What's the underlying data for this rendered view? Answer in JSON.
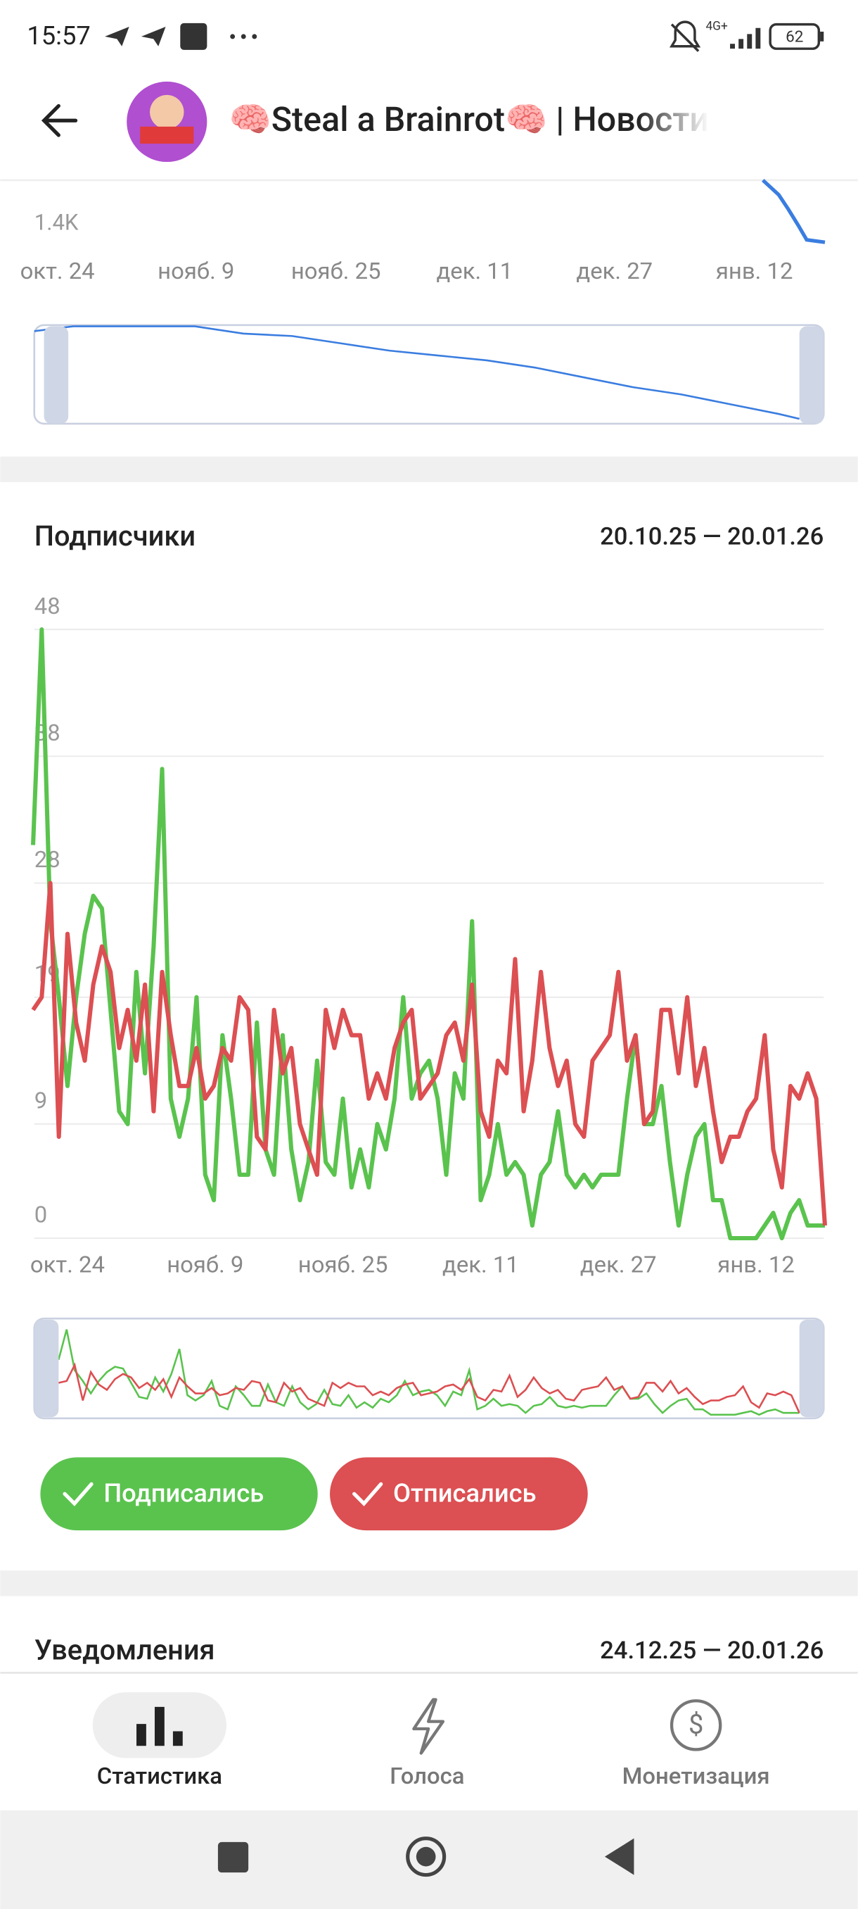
{
  "status_bar": {
    "time": "15:57",
    "network": "4G+",
    "battery": "62"
  },
  "header": {
    "title": "🧠Steal a Brainrot🧠 | Новости"
  },
  "top_chart": {
    "ytick_label": "1.4K",
    "x_labels": [
      "окт. 24",
      "нояб. 9",
      "нояб. 25",
      "дек. 11",
      "дек. 27",
      "янв. 12"
    ]
  },
  "chart_data": {
    "type": "line",
    "title": "Подписчики",
    "subtitle": "20.10.25 — 20.01.26",
    "categories": [
      null,
      null,
      null,
      null,
      "окт. 24",
      null,
      null,
      null,
      null,
      null,
      null,
      null,
      null,
      null,
      null,
      null,
      null,
      null,
      null,
      null,
      "нояб. 9",
      null,
      null,
      null,
      null,
      null,
      null,
      null,
      null,
      null,
      null,
      null,
      null,
      null,
      null,
      null,
      "нояб. 25",
      null,
      null,
      null,
      null,
      null,
      null,
      null,
      null,
      null,
      null,
      null,
      null,
      null,
      null,
      null,
      "дек. 11",
      null,
      null,
      null,
      null,
      null,
      null,
      null,
      null,
      null,
      null,
      null,
      null,
      null,
      null,
      null,
      "дек. 27",
      null,
      null,
      null,
      null,
      null,
      null,
      null,
      null,
      null,
      null,
      null,
      null,
      null,
      null,
      null,
      "янв. 12",
      null,
      null,
      null,
      null,
      null,
      null,
      null,
      null
    ],
    "ylim": [
      0,
      48
    ],
    "yticks": [
      0,
      9,
      19,
      28,
      38,
      48
    ],
    "grid": true,
    "series": [
      {
        "name": "Подписались",
        "color": "#5ac34e",
        "values": [
          31,
          48,
          25,
          19,
          12,
          19,
          24,
          27,
          26,
          18,
          10,
          9,
          21,
          13,
          23,
          37,
          11,
          8,
          11,
          19,
          5,
          3,
          16,
          11,
          5,
          5,
          17,
          7,
          5,
          16,
          7,
          3,
          6,
          14,
          6,
          5,
          11,
          4,
          7,
          4,
          9,
          7,
          11,
          19,
          11,
          13,
          14,
          11,
          5,
          13,
          11,
          25,
          3,
          5,
          9,
          5,
          6,
          5,
          1,
          5,
          6,
          10,
          5,
          4,
          5,
          4,
          5,
          5,
          5,
          11,
          16,
          9,
          9,
          12,
          6,
          1,
          5,
          8,
          9,
          3,
          3,
          0,
          0,
          0,
          0,
          1,
          2,
          0,
          2,
          3,
          1,
          1,
          1
        ]
      },
      {
        "name": "Отписались",
        "color": "#dc4f52",
        "values": [
          18,
          19,
          28,
          8,
          24,
          17,
          14,
          20,
          23,
          21,
          15,
          18,
          14,
          20,
          10,
          21,
          16,
          12,
          12,
          15,
          11,
          12,
          15,
          14,
          19,
          18,
          8,
          7,
          18,
          13,
          15,
          9,
          7,
          5,
          18,
          15,
          18,
          16,
          16,
          11,
          13,
          11,
          15,
          17,
          18,
          11,
          12,
          13,
          16,
          17,
          14,
          20,
          10,
          8,
          14,
          13,
          22,
          10,
          14,
          21,
          15,
          12,
          14,
          9,
          8,
          14,
          15,
          16,
          21,
          14,
          16,
          9,
          10,
          18,
          18,
          13,
          19,
          12,
          15,
          10,
          6,
          8,
          8,
          10,
          11,
          16,
          7,
          4,
          12,
          11,
          13,
          11,
          1
        ]
      }
    ]
  },
  "next_section": {
    "title": "Уведомления",
    "date_range": "24.12.25 — 20.01.26"
  },
  "bottom_nav": {
    "items": [
      "Статистика",
      "Голоса",
      "Монетизация"
    ]
  }
}
